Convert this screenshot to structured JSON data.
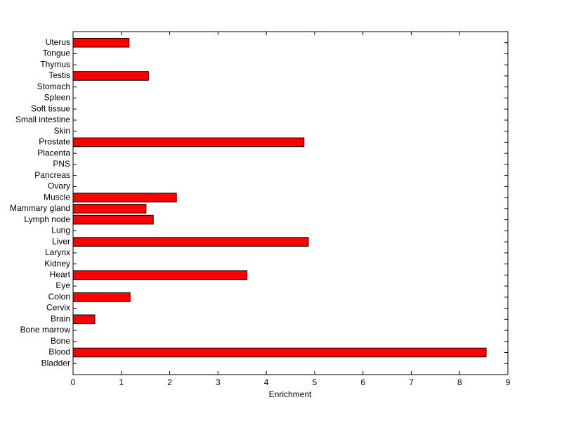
{
  "chart_data": {
    "type": "barh",
    "xlabel": "Enrichment",
    "categories": [
      "Bladder",
      "Blood",
      "Bone",
      "Bone marrow",
      "Brain",
      "Cervix",
      "Colon",
      "Eye",
      "Heart",
      "Kidney",
      "Larynx",
      "Liver",
      "Lung",
      "Lymph node",
      "Mammary gland",
      "Muscle",
      "Ovary",
      "Pancreas",
      "PNS",
      "Placenta",
      "Prostate",
      "Skin",
      "Small intestine",
      "Soft tissue",
      "Spleen",
      "Stomach",
      "Testis",
      "Thymus",
      "Tongue",
      "Uterus"
    ],
    "values": [
      0,
      8.55,
      0,
      0,
      0.45,
      0,
      1.18,
      0,
      3.6,
      0,
      0,
      4.87,
      0,
      1.66,
      1.51,
      2.14,
      0,
      0,
      0,
      0,
      4.78,
      0,
      0,
      0,
      0,
      0,
      1.56,
      0,
      0,
      1.16
    ],
    "color": "#ff0000",
    "xlim": [
      0,
      9
    ],
    "xticks": [
      0,
      1,
      2,
      3,
      4,
      5,
      6,
      7,
      8,
      9
    ]
  }
}
